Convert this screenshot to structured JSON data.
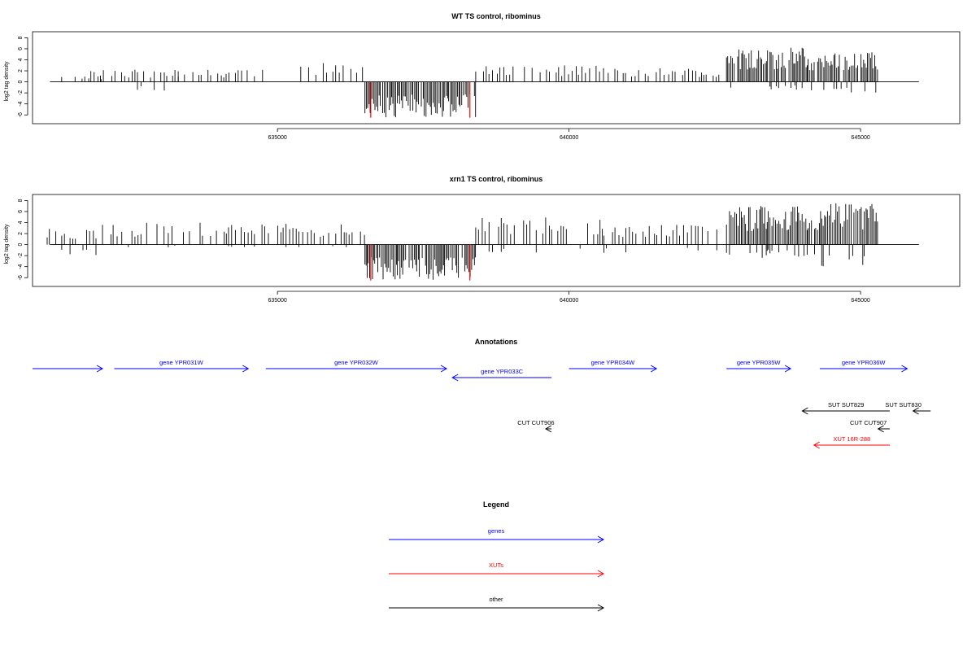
{
  "colors": {
    "gene": "#0000ff",
    "xut": "#ff0000",
    "other": "#000000",
    "red_marker": "#ff0000"
  },
  "chart_data": [
    {
      "type": "bar",
      "title": "WT TS control, ribominus",
      "ylabel": "log2 tag density",
      "xlim": [
        630800,
        646700
      ],
      "ylim": [
        -7,
        8.5
      ],
      "yticks": [
        -6,
        -4,
        -2,
        0,
        2,
        4,
        6,
        8
      ],
      "xticks": [
        635000,
        640000,
        645000
      ],
      "xtick_labels": [
        "635000",
        "640000",
        "645000"
      ],
      "red_markers": [
        636600,
        638300
      ],
      "segments": [
        {
          "x0": 631100,
          "x1": 631300,
          "pos": 0,
          "neg": 1.2
        },
        {
          "x0": 631300,
          "x1": 632000,
          "pos": 1.0,
          "neg": 0
        },
        {
          "x0": 631800,
          "x1": 633300,
          "pos": 2.2,
          "neg": 2.0
        },
        {
          "x0": 633300,
          "x1": 634800,
          "pos": 2.2,
          "neg": 0
        },
        {
          "x0": 635400,
          "x1": 636500,
          "pos": 3.5,
          "neg": 0
        },
        {
          "x0": 636500,
          "x1": 638400,
          "pos": 0,
          "neg": 6.5
        },
        {
          "x0": 638400,
          "x1": 640600,
          "pos": 3.0,
          "neg": 0
        },
        {
          "x0": 640600,
          "x1": 642600,
          "pos": 2.5,
          "neg": 0
        },
        {
          "x0": 642700,
          "x1": 644100,
          "pos": 6.3,
          "neg": 1.5
        },
        {
          "x0": 644100,
          "x1": 645300,
          "pos": 5.5,
          "neg": 2.0
        }
      ]
    },
    {
      "type": "bar",
      "title": "xrn1 TS control, ribominus",
      "ylabel": "log2 tag density",
      "xlim": [
        630800,
        646700
      ],
      "ylim": [
        -7,
        8.5
      ],
      "yticks": [
        -6,
        -4,
        -2,
        0,
        2,
        4,
        6,
        8
      ],
      "xticks": [
        635000,
        640000,
        645000
      ],
      "xtick_labels": [
        "635000",
        "640000",
        "645000"
      ],
      "red_markers": [
        636600,
        638300
      ],
      "segments": [
        {
          "x0": 631000,
          "x1": 632000,
          "pos": 3.0,
          "neg": 2.0
        },
        {
          "x0": 632000,
          "x1": 636500,
          "pos": 4.0,
          "neg": 0.5
        },
        {
          "x0": 636500,
          "x1": 638400,
          "pos": 0,
          "neg": 6.5
        },
        {
          "x0": 638400,
          "x1": 640600,
          "pos": 5.0,
          "neg": 1.5
        },
        {
          "x0": 640600,
          "x1": 642600,
          "pos": 4.0,
          "neg": 1.5
        },
        {
          "x0": 642700,
          "x1": 644100,
          "pos": 7.0,
          "neg": 2.5
        },
        {
          "x0": 644100,
          "x1": 645300,
          "pos": 7.5,
          "neg": 4.0
        }
      ]
    }
  ],
  "annotations": {
    "title": "Annotations",
    "features": [
      {
        "label": "",
        "kind": "gene",
        "strand": "+",
        "start": 630800,
        "end": 632000,
        "row": 0
      },
      {
        "label": "gene YPR031W",
        "kind": "gene",
        "strand": "+",
        "start": 632200,
        "end": 634500,
        "row": 0
      },
      {
        "label": "gene YPR032W",
        "kind": "gene",
        "strand": "+",
        "start": 634800,
        "end": 637900,
        "row": 0
      },
      {
        "label": "gene YPR033C",
        "kind": "gene",
        "strand": "-",
        "start": 638000,
        "end": 639700,
        "row": 1
      },
      {
        "label": "gene YPR034W",
        "kind": "gene",
        "strand": "+",
        "start": 640000,
        "end": 641500,
        "row": 0
      },
      {
        "label": "gene YPR035W",
        "kind": "gene",
        "strand": "+",
        "start": 642700,
        "end": 643800,
        "row": 0
      },
      {
        "label": "gene YPR036W",
        "kind": "gene",
        "strand": "+",
        "start": 644300,
        "end": 645800,
        "row": 0
      },
      {
        "label": "SUT SUT829",
        "kind": "other",
        "strand": "-",
        "start": 644000,
        "end": 645500,
        "row": 2
      },
      {
        "label": "SUT SUT830",
        "kind": "other",
        "strand": "-",
        "start": 645900,
        "end": 646200,
        "row": 2
      },
      {
        "label": "CUT CUT906",
        "kind": "other",
        "strand": "-",
        "start": 639600,
        "end": 639700,
        "row": 3
      },
      {
        "label": "CUT CUT907",
        "kind": "other",
        "strand": "-",
        "start": 645300,
        "end": 645500,
        "row": 3
      },
      {
        "label": "XUT 16R-288",
        "kind": "xut",
        "strand": "-",
        "start": 644200,
        "end": 645500,
        "row": 4
      }
    ]
  },
  "legend": {
    "title": "Legend",
    "items": [
      {
        "label": "genes",
        "kind": "gene"
      },
      {
        "label": "XUTs",
        "kind": "xut"
      },
      {
        "label": "other",
        "kind": "other"
      }
    ]
  }
}
